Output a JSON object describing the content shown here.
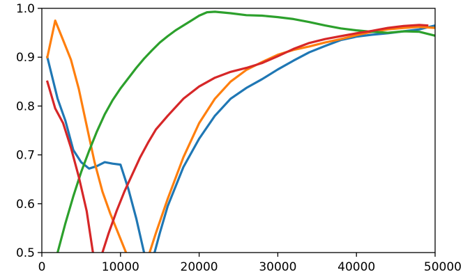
{
  "chart_data": {
    "type": "line",
    "title": "",
    "xlabel": "",
    "ylabel": "",
    "xlim": [
      0,
      50000
    ],
    "ylim": [
      0.5,
      1.0
    ],
    "grid": false,
    "legend": "none",
    "x_ticks": [
      0,
      10000,
      20000,
      30000,
      40000,
      50000
    ],
    "x_tick_labels": [
      "0",
      "10000",
      "20000",
      "30000",
      "40000",
      "50000"
    ],
    "y_ticks": [
      0.5,
      0.6,
      0.7,
      0.8,
      0.9,
      1.0
    ],
    "y_tick_labels": [
      "0.5",
      "0.6",
      "0.7",
      "0.8",
      "0.9",
      "1.0"
    ],
    "series": [
      {
        "color": "#1f77b4",
        "points": [
          [
            700,
            0.9
          ],
          [
            2000,
            0.815
          ],
          [
            3000,
            0.77
          ],
          [
            4000,
            0.71
          ],
          [
            5000,
            0.685
          ],
          [
            6000,
            0.672
          ],
          [
            7000,
            0.677
          ],
          [
            8000,
            0.685
          ],
          [
            9000,
            0.682
          ],
          [
            10000,
            0.68
          ],
          [
            11000,
            0.63
          ],
          [
            12000,
            0.57
          ],
          [
            13000,
            0.5
          ],
          [
            13300,
            0.46
          ],
          [
            14000,
            0.48
          ],
          [
            15000,
            0.54
          ],
          [
            16000,
            0.595
          ],
          [
            18000,
            0.675
          ],
          [
            20000,
            0.733
          ],
          [
            22000,
            0.78
          ],
          [
            24000,
            0.815
          ],
          [
            26000,
            0.837
          ],
          [
            28000,
            0.855
          ],
          [
            30000,
            0.875
          ],
          [
            32000,
            0.893
          ],
          [
            34000,
            0.91
          ],
          [
            36000,
            0.923
          ],
          [
            38000,
            0.935
          ],
          [
            40000,
            0.942
          ],
          [
            42000,
            0.946
          ],
          [
            44000,
            0.949
          ],
          [
            46000,
            0.953
          ],
          [
            48000,
            0.957
          ],
          [
            50000,
            0.965
          ]
        ]
      },
      {
        "color": "#ff7f0e",
        "points": [
          [
            700,
            0.9
          ],
          [
            1700,
            0.975
          ],
          [
            2700,
            0.935
          ],
          [
            3700,
            0.895
          ],
          [
            4700,
            0.835
          ],
          [
            5700,
            0.76
          ],
          [
            6700,
            0.685
          ],
          [
            7700,
            0.625
          ],
          [
            8700,
            0.58
          ],
          [
            9700,
            0.54
          ],
          [
            10700,
            0.5
          ],
          [
            11200,
            0.47
          ],
          [
            12500,
            0.45
          ],
          [
            13500,
            0.49
          ],
          [
            14500,
            0.54
          ],
          [
            16000,
            0.61
          ],
          [
            18000,
            0.695
          ],
          [
            20000,
            0.765
          ],
          [
            22000,
            0.815
          ],
          [
            24000,
            0.85
          ],
          [
            26000,
            0.874
          ],
          [
            28000,
            0.89
          ],
          [
            30000,
            0.905
          ],
          [
            32000,
            0.915
          ],
          [
            34000,
            0.922
          ],
          [
            36000,
            0.93
          ],
          [
            38000,
            0.937
          ],
          [
            40000,
            0.945
          ],
          [
            42000,
            0.952
          ],
          [
            44000,
            0.957
          ],
          [
            46000,
            0.96
          ],
          [
            48000,
            0.962
          ],
          [
            50000,
            0.96
          ]
        ]
      },
      {
        "color": "#2ca02c",
        "points": [
          [
            2000,
            0.5
          ],
          [
            3000,
            0.56
          ],
          [
            4000,
            0.615
          ],
          [
            5000,
            0.665
          ],
          [
            6000,
            0.708
          ],
          [
            7000,
            0.748
          ],
          [
            8000,
            0.783
          ],
          [
            9000,
            0.812
          ],
          [
            10000,
            0.836
          ],
          [
            11000,
            0.857
          ],
          [
            12000,
            0.878
          ],
          [
            13000,
            0.897
          ],
          [
            14000,
            0.914
          ],
          [
            15000,
            0.93
          ],
          [
            16000,
            0.943
          ],
          [
            17000,
            0.955
          ],
          [
            18000,
            0.965
          ],
          [
            19000,
            0.975
          ],
          [
            20000,
            0.985
          ],
          [
            21000,
            0.992
          ],
          [
            22000,
            0.993
          ],
          [
            24000,
            0.99
          ],
          [
            26000,
            0.986
          ],
          [
            28000,
            0.985
          ],
          [
            30000,
            0.982
          ],
          [
            32000,
            0.978
          ],
          [
            34000,
            0.972
          ],
          [
            36000,
            0.965
          ],
          [
            38000,
            0.959
          ],
          [
            40000,
            0.955
          ],
          [
            42000,
            0.952
          ],
          [
            44000,
            0.95
          ],
          [
            46000,
            0.953
          ],
          [
            48000,
            0.952
          ],
          [
            50000,
            0.944
          ]
        ]
      },
      {
        "color": "#d62728",
        "points": [
          [
            700,
            0.85
          ],
          [
            1700,
            0.795
          ],
          [
            2700,
            0.765
          ],
          [
            3700,
            0.715
          ],
          [
            4700,
            0.655
          ],
          [
            5700,
            0.585
          ],
          [
            6500,
            0.5
          ],
          [
            6900,
            0.465
          ],
          [
            7300,
            0.465
          ],
          [
            7700,
            0.5
          ],
          [
            8500,
            0.54
          ],
          [
            9500,
            0.585
          ],
          [
            10500,
            0.625
          ],
          [
            11500,
            0.66
          ],
          [
            12500,
            0.695
          ],
          [
            13500,
            0.725
          ],
          [
            14500,
            0.752
          ],
          [
            16000,
            0.78
          ],
          [
            18000,
            0.815
          ],
          [
            20000,
            0.84
          ],
          [
            22000,
            0.858
          ],
          [
            24000,
            0.87
          ],
          [
            26000,
            0.878
          ],
          [
            28000,
            0.888
          ],
          [
            30000,
            0.902
          ],
          [
            32000,
            0.917
          ],
          [
            34000,
            0.929
          ],
          [
            36000,
            0.937
          ],
          [
            38000,
            0.943
          ],
          [
            40000,
            0.949
          ],
          [
            42000,
            0.954
          ],
          [
            44000,
            0.96
          ],
          [
            46000,
            0.964
          ],
          [
            48000,
            0.966
          ],
          [
            49000,
            0.965
          ]
        ]
      }
    ]
  }
}
